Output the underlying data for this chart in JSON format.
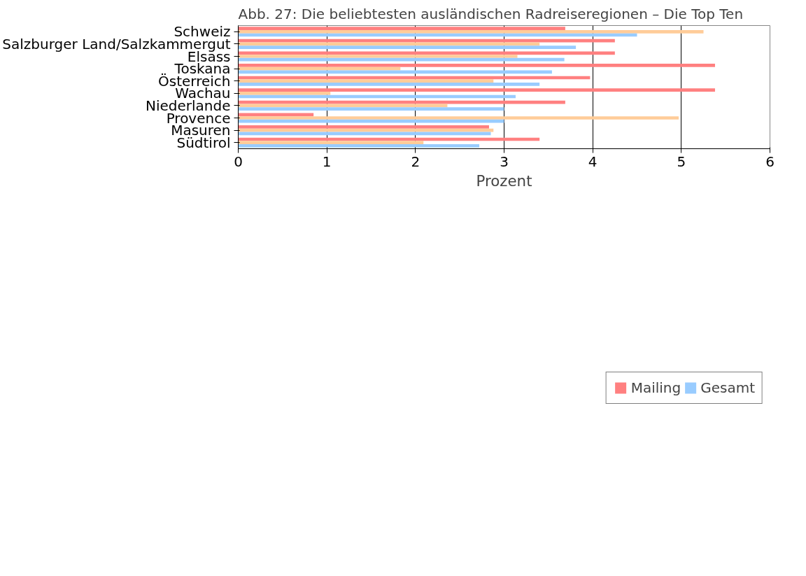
{
  "chart_data": {
    "type": "bar",
    "orientation": "horizontal",
    "title": "Abb. 27: Die beliebtesten ausländischen Radreiseregionen – Die Top Ten",
    "xlabel": "Prozent",
    "categories": [
      "Schweiz",
      "Salzburger Land/Salzkammergut",
      "Elsass",
      "Toskana",
      "Österreich",
      "Wachau",
      "Niederlande",
      "Provence",
      "Masuren",
      "Südtirol"
    ],
    "series": [
      {
        "name": "Mailing",
        "color": "#ff8080",
        "values": [
          3.69,
          4.25,
          4.25,
          5.38,
          3.97,
          5.38,
          3.69,
          0.85,
          2.83,
          3.4
        ]
      },
      {
        "color": "#ffcc99",
        "values": [
          5.25,
          3.4,
          3.15,
          1.83,
          2.88,
          1.04,
          2.36,
          4.97,
          2.88,
          2.09
        ]
      },
      {
        "name": "Gesamt",
        "color": "#99ccff",
        "values": [
          4.5,
          3.81,
          3.68,
          3.54,
          3.4,
          3.13,
          3.0,
          3.0,
          2.85,
          2.72
        ]
      }
    ],
    "xlim": [
      0,
      6
    ],
    "xticks": [
      0,
      1,
      2,
      3,
      4,
      5,
      6
    ],
    "grid": "x",
    "legend": "bottom"
  }
}
